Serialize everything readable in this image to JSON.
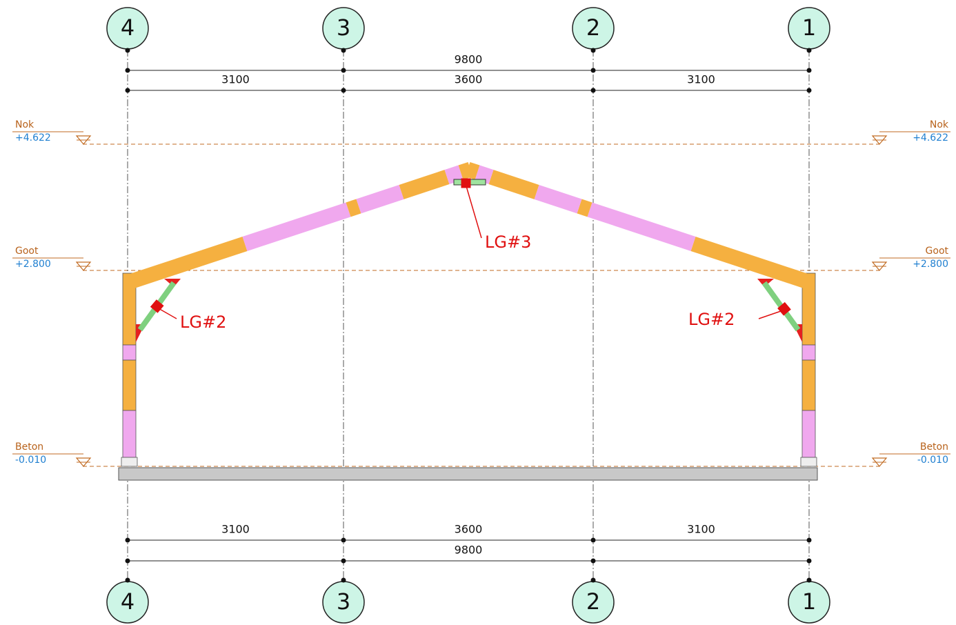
{
  "top": {
    "axes": [
      "4",
      "3",
      "2",
      "1"
    ],
    "overall": "9800",
    "spans": [
      "3100",
      "3600",
      "3100"
    ]
  },
  "bottom": {
    "spans": [
      "3100",
      "3600",
      "3100"
    ],
    "overall": "9800",
    "axes": [
      "4",
      "3",
      "2",
      "1"
    ]
  },
  "levels": {
    "left": [
      {
        "name": "Nok",
        "elevation": "+4.622"
      },
      {
        "name": "Goot",
        "elevation": "+2.800"
      },
      {
        "name": "Beton",
        "elevation": "-0.010"
      }
    ],
    "right": [
      {
        "name": "Nok",
        "elevation": "+4.622"
      },
      {
        "name": "Goot",
        "elevation": "+2.800"
      },
      {
        "name": "Beton",
        "elevation": "-0.010"
      }
    ]
  },
  "annotations": {
    "ridge": "LG#3",
    "left_haunch": "LG#2",
    "right_haunch": "LG#2"
  }
}
